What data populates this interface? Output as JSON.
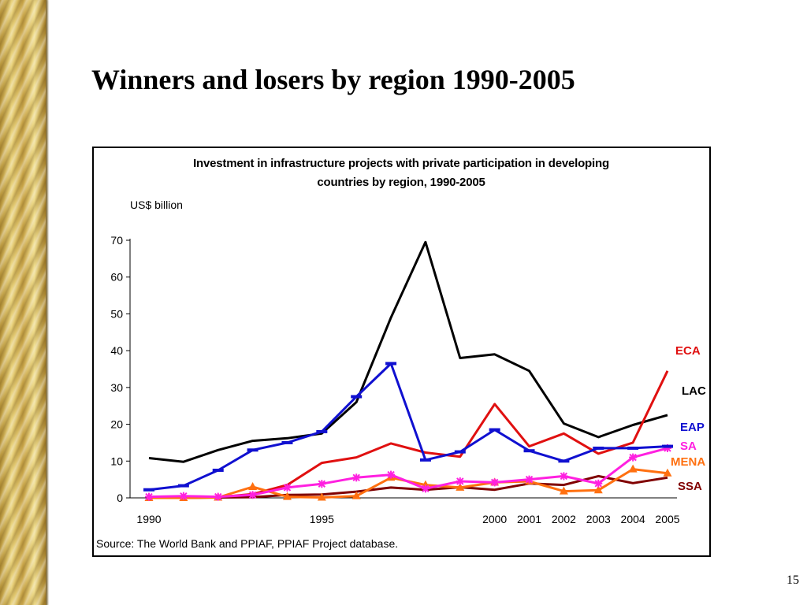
{
  "slide": {
    "title": "Winners and losers by region 1990-2005",
    "page_number": "15"
  },
  "chart_data": {
    "type": "line",
    "title": "Investment in infrastructure projects with private participation in developing countries by region, 1990-2005",
    "title_lines": [
      "Investment in infrastructure projects with private participation in developing",
      "countries by region, 1990-2005"
    ],
    "unit_label": "US$ billion",
    "source": "Source: The World Bank and PPIAF, PPIAF Project database.",
    "x": [
      1990,
      1991,
      1992,
      1993,
      1994,
      1995,
      1996,
      1997,
      1998,
      1999,
      2000,
      2001,
      2002,
      2003,
      2004,
      2005
    ],
    "x_tick_labels": [
      "1990",
      "1995",
      "2000",
      "2001",
      "2002",
      "2003",
      "2004",
      "2005"
    ],
    "x_tick_values": [
      1990,
      1995,
      2000,
      2001,
      2002,
      2003,
      2004,
      2005
    ],
    "ylim": [
      0,
      70
    ],
    "y_ticks": [
      0,
      10,
      20,
      30,
      40,
      50,
      60,
      70
    ],
    "grid": false,
    "series": [
      {
        "name": "LAC",
        "color": "#000000",
        "marker": "none",
        "values": [
          10.8,
          9.8,
          13.0,
          15.5,
          16.2,
          17.5,
          26.0,
          49.0,
          69.5,
          38.0,
          39.0,
          34.5,
          20.2,
          16.5,
          19.8,
          22.5
        ]
      },
      {
        "name": "ECA",
        "color": "#e01010",
        "marker": "none",
        "values": [
          0.1,
          0.1,
          0.2,
          1.0,
          3.5,
          9.5,
          11.0,
          14.8,
          12.3,
          11.2,
          25.5,
          14.0,
          17.5,
          12.0,
          15.0,
          34.5
        ]
      },
      {
        "name": "EAP",
        "color": "#1010d0",
        "marker": "dash",
        "values": [
          2.2,
          3.3,
          7.5,
          13.0,
          15.0,
          18.0,
          27.5,
          36.5,
          10.3,
          12.5,
          18.5,
          12.8,
          10.0,
          13.5,
          13.5,
          14.0
        ]
      },
      {
        "name": "SA",
        "color": "#ff20e0",
        "marker": "star",
        "values": [
          0.3,
          0.5,
          0.3,
          0.8,
          2.8,
          3.8,
          5.5,
          6.3,
          2.5,
          4.5,
          4.2,
          5.0,
          5.9,
          3.9,
          11.0,
          13.5
        ]
      },
      {
        "name": "MENA",
        "color": "#ff7010",
        "marker": "triangle",
        "values": [
          0.0,
          0.0,
          0.1,
          3.0,
          0.3,
          0.1,
          0.5,
          5.5,
          3.5,
          2.8,
          4.2,
          4.5,
          1.8,
          2.1,
          7.8,
          6.7
        ]
      },
      {
        "name": "SSA",
        "color": "#800000",
        "marker": "none",
        "values": [
          0.0,
          0.0,
          0.1,
          0.2,
          0.8,
          0.9,
          1.7,
          2.8,
          2.2,
          2.9,
          2.2,
          3.9,
          3.5,
          5.9,
          4.0,
          5.5
        ]
      }
    ]
  }
}
